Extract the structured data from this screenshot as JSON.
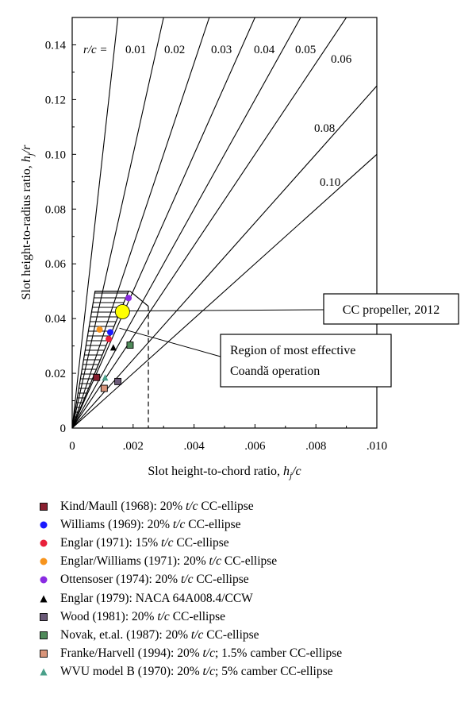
{
  "chart_data": {
    "type": "scatter",
    "xlabel_main": "Slot height-to-chord ratio, ",
    "xlabel_var": "h",
    "xlabel_sub": "j",
    "xlabel_tail": "/c",
    "ylabel_main": "Slot height-to-radius ratio, ",
    "ylabel_var": "h",
    "ylabel_sub": "j",
    "ylabel_tail": "/r",
    "xlim": [
      0,
      0.01
    ],
    "ylim": [
      0,
      0.15
    ],
    "x_ticks": [
      {
        "value": 0,
        "label": "0"
      },
      {
        "value": 0.002,
        "label": ".002"
      },
      {
        "value": 0.004,
        "label": ".004"
      },
      {
        "value": 0.006,
        "label": ".006"
      },
      {
        "value": 0.008,
        "label": ".008"
      },
      {
        "value": 0.01,
        "label": ".010"
      }
    ],
    "y_ticks": [
      {
        "value": 0,
        "label": "0"
      },
      {
        "value": 0.02,
        "label": "0.02"
      },
      {
        "value": 0.04,
        "label": "0.04"
      },
      {
        "value": 0.06,
        "label": "0.06"
      },
      {
        "value": 0.08,
        "label": "0.08"
      },
      {
        "value": 0.1,
        "label": "0.10"
      },
      {
        "value": 0.12,
        "label": "0.12"
      },
      {
        "value": 0.14,
        "label": "0.14"
      }
    ],
    "rc_prefix": "r/c =",
    "rc_lines": [
      {
        "rc": 0.01,
        "label": "0.01"
      },
      {
        "rc": 0.02,
        "label": "0.02"
      },
      {
        "rc": 0.03,
        "label": "0.03"
      },
      {
        "rc": 0.04,
        "label": "0.04"
      },
      {
        "rc": 0.05,
        "label": "0.05"
      },
      {
        "rc": 0.06,
        "label": "0.06"
      },
      {
        "rc": 0.08,
        "label": "0.08"
      },
      {
        "rc": 0.1,
        "label": "0.10"
      }
    ],
    "region": {
      "label_line1": "Region of most effective",
      "label_line2": "Coandă operation",
      "y_top": 0.05,
      "x_limit": 0.0025
    },
    "cc_propeller": {
      "label": "CC propeller, 2012",
      "x": 0.00165,
      "y": 0.0425,
      "color": "#ffff00"
    },
    "series": [
      {
        "name": "Kind/Maull (1968): 20% t/c CC-ellipse",
        "marker": "square",
        "color": "#8a2030",
        "points": [
          [
            0.0008,
            0.0185
          ]
        ]
      },
      {
        "name": "Williams (1969): 20% t/c CC-ellipse",
        "marker": "circle",
        "color": "#1a1aff",
        "points": [
          [
            0.00125,
            0.035
          ]
        ]
      },
      {
        "name": "Englar (1971): 15% t/c CC-ellipse",
        "marker": "circle",
        "color": "#e8203a",
        "points": [
          [
            0.0012,
            0.0325
          ]
        ]
      },
      {
        "name": "Englar/Williams (1971): 20% t/c CC-ellipse",
        "marker": "circle",
        "color": "#f7941d",
        "points": [
          [
            0.0009,
            0.036
          ]
        ]
      },
      {
        "name": "Ottensoser (1974): 20% t/c CC-ellipse",
        "marker": "circle",
        "color": "#8a2be2",
        "points": [
          [
            0.00185,
            0.0475
          ]
        ]
      },
      {
        "name": "Englar (1979): NACA 64A008.4/CCW",
        "marker": "triangle",
        "color": "#000000",
        "points": [
          [
            0.00135,
            0.0295
          ]
        ]
      },
      {
        "name": "Wood (1981): 20% t/c CC-ellipse",
        "marker": "square",
        "color": "#6b5a78",
        "points": [
          [
            0.0015,
            0.017
          ]
        ]
      },
      {
        "name": "Novak, et.al. (1987): 20% t/c CC-ellipse",
        "marker": "square",
        "color": "#4f8a5a",
        "points": [
          [
            0.0019,
            0.0303
          ]
        ]
      },
      {
        "name": "Franke/Harvell (1994): 20% t/c; 1.5% camber CC-ellipse",
        "marker": "square",
        "color": "#d9957a",
        "points": [
          [
            0.00105,
            0.0145
          ]
        ]
      },
      {
        "name": "WVU model B (1970): 20% t/c; 5% camber CC-ellipse",
        "marker": "triangle",
        "color": "#4aa08a",
        "points": [
          [
            0.00108,
            0.0185
          ]
        ]
      }
    ]
  }
}
